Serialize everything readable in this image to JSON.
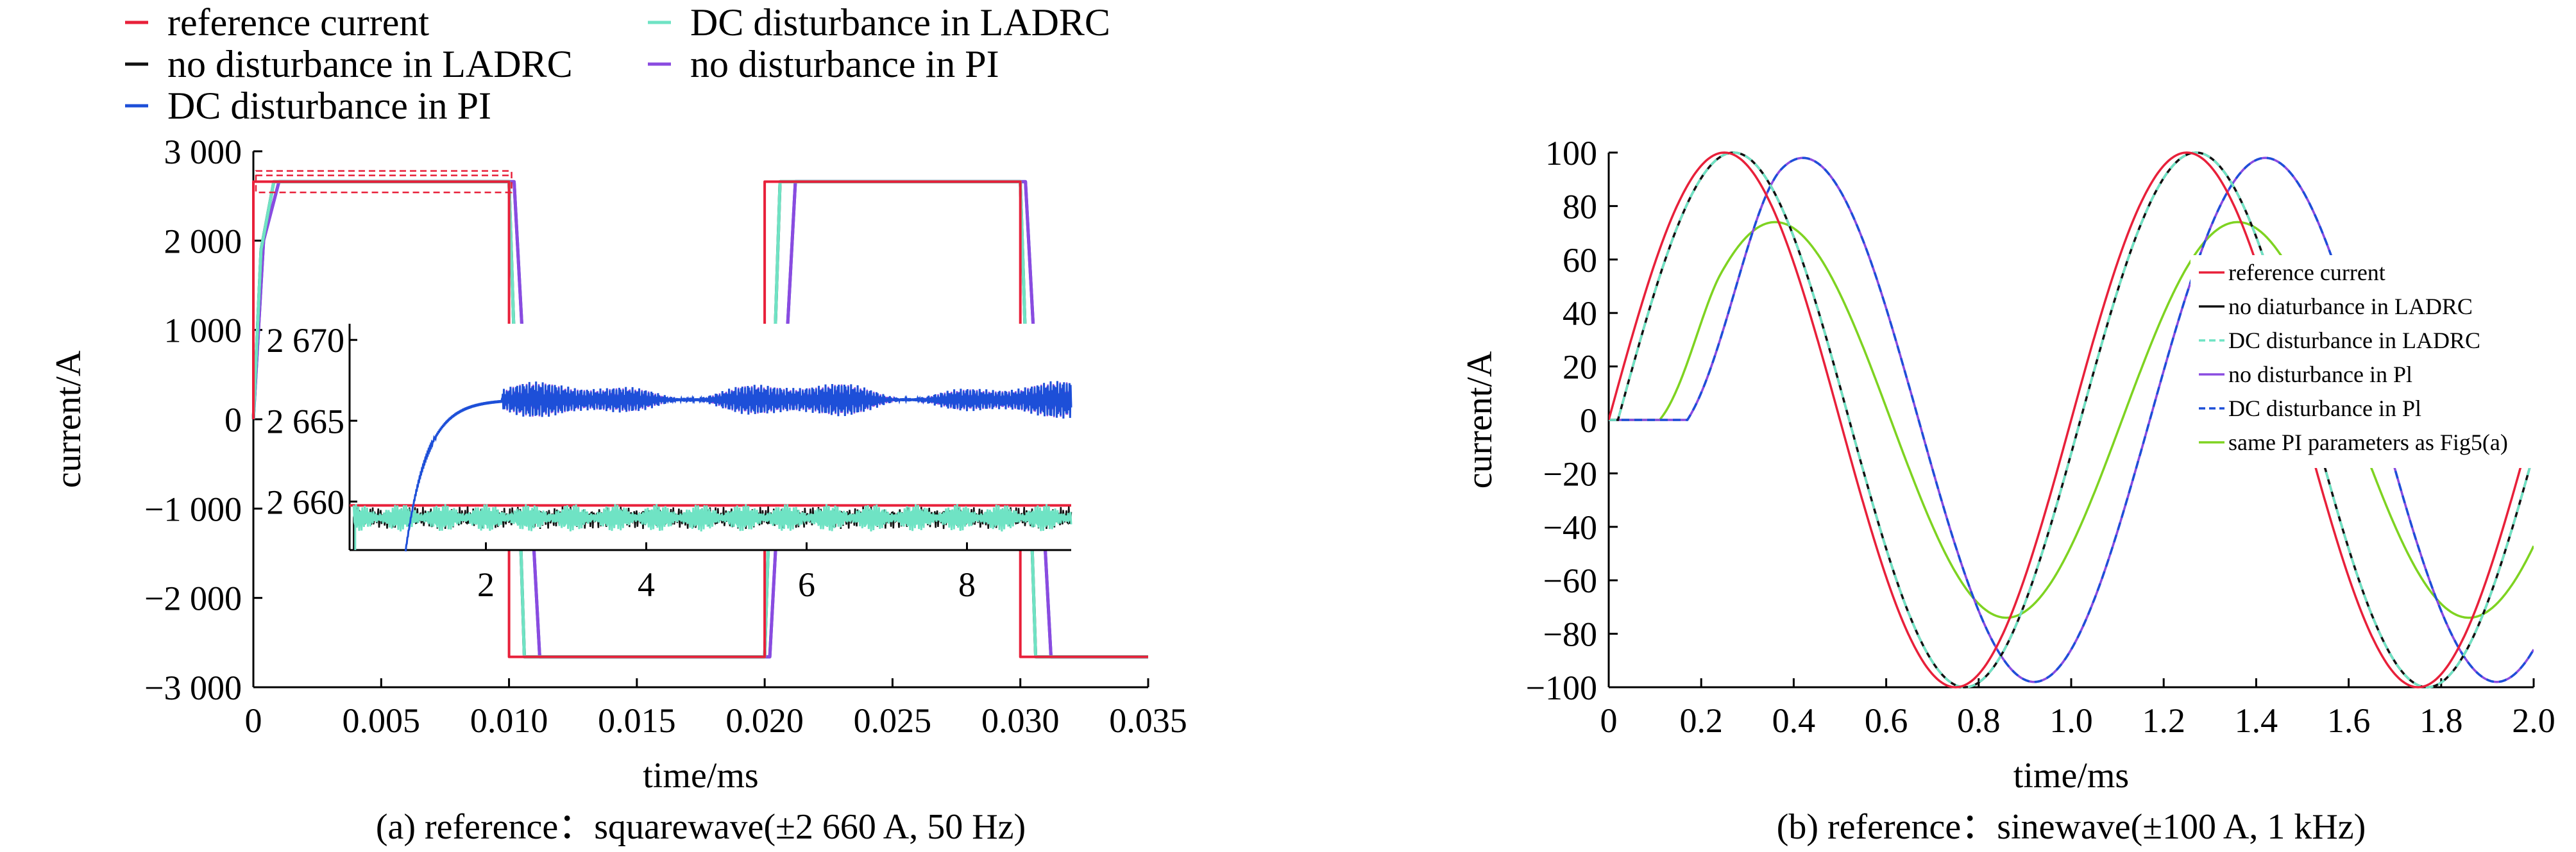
{
  "colors": {
    "reference": "#e8203a",
    "no_dist_ladrc": "#111111",
    "dc_dist_ladrc": "#6fe3c4",
    "no_dist_pi": "#8a4be0",
    "dc_dist_pi": "#1d4fd8",
    "same_pi": "#7ed321"
  },
  "chart_data": [
    {
      "id": "a",
      "type": "line",
      "caption": "(a) reference：squarewave(±2 660 A, 50 Hz)",
      "xlabel": "time/ms",
      "ylabel": "current/A",
      "xlim": [
        0,
        0.035
      ],
      "ylim": [
        -3000,
        3000
      ],
      "xticks": [
        0,
        0.005,
        0.01,
        0.015,
        0.02,
        0.025,
        0.03,
        0.035
      ],
      "xtick_labels": [
        "0",
        "0.005",
        "0.010",
        "0.015",
        "0.020",
        "0.025",
        "0.030",
        "0.035"
      ],
      "yticks": [
        -3000,
        -2000,
        -1000,
        0,
        1000,
        2000,
        3000
      ],
      "ytick_labels": [
        "−3 000",
        "−2 000",
        "−1 000",
        "0",
        "1 000",
        "2 000",
        "3 000"
      ],
      "legend_position": "top",
      "legend": [
        "reference current",
        "DC disturbance in LADRC",
        "no disturbance in LADRC",
        "no disturbance in PI",
        "DC disturbance in PI"
      ],
      "series": [
        {
          "name": "reference current",
          "key": "reference",
          "x": [
            0,
            0,
            0.01,
            0.01,
            0.02,
            0.02,
            0.03,
            0.03,
            0.035
          ],
          "y": [
            0,
            2660,
            2660,
            -2660,
            -2660,
            2660,
            2660,
            -2660,
            -2660
          ]
        },
        {
          "name": "no disturbance in LADRC",
          "key": "no_dist_ladrc",
          "x": [
            0,
            0.0003,
            0.0008,
            0.01,
            0.0106,
            0.02,
            0.0206,
            0.03,
            0.0306,
            0.035
          ],
          "y": [
            0,
            1900,
            2660,
            2660,
            -2660,
            -2660,
            2660,
            2660,
            -2660,
            -2660
          ]
        },
        {
          "name": "DC disturbance in LADRC",
          "key": "dc_dist_ladrc",
          "x": [
            0,
            0.0003,
            0.0008,
            0.01,
            0.0106,
            0.02,
            0.0206,
            0.03,
            0.0306,
            0.035
          ],
          "y": [
            0,
            1900,
            2660,
            2660,
            -2660,
            -2660,
            2660,
            2660,
            -2660,
            -2660
          ]
        },
        {
          "name": "no disturbance in PI",
          "key": "no_dist_pi",
          "x": [
            0,
            0.0004,
            0.001,
            0.0102,
            0.0112,
            0.0202,
            0.0212,
            0.0302,
            0.0312,
            0.035
          ],
          "y": [
            0,
            2000,
            2660,
            2660,
            -2660,
            -2660,
            2660,
            2660,
            -2660,
            -2660
          ]
        },
        {
          "name": "DC disturbance in PI",
          "key": "dc_dist_pi",
          "x": [
            0,
            0.0004,
            0.001,
            0.0102,
            0.0112,
            0.0202,
            0.0212,
            0.0302,
            0.0312,
            0.035
          ],
          "y": [
            0,
            2000,
            2660,
            2660,
            -2660,
            -2660,
            2660,
            2660,
            -2660,
            -2660
          ]
        }
      ],
      "inset": {
        "xlim": [
          0.3,
          9.3
        ],
        "ylim": [
          2657,
          2671
        ],
        "xticks": [
          2,
          4,
          6,
          8
        ],
        "xtick_labels": [
          "2",
          "4",
          "6",
          "8"
        ],
        "yticks": [
          2660,
          2665,
          2670
        ],
        "ytick_labels": [
          "2 660",
          "2 665",
          "2 670"
        ],
        "reference_level": 2660,
        "ladrc_level": 2659,
        "pi_start": 1.0,
        "pi_level": 2666.3
      }
    },
    {
      "id": "b",
      "type": "line",
      "caption": "(b) reference：sinewave(±100 A, 1 kHz)",
      "xlabel": "time/ms",
      "ylabel": "current/A",
      "xlim": [
        0,
        2.0
      ],
      "ylim": [
        -100,
        100
      ],
      "xticks": [
        0,
        0.2,
        0.4,
        0.6,
        0.8,
        1.0,
        1.2,
        1.4,
        1.6,
        1.8,
        2.0
      ],
      "xtick_labels": [
        "0",
        "0.2",
        "0.4",
        "0.6",
        "0.8",
        "1.0",
        "1.2",
        "1.4",
        "1.6",
        "1.8",
        "2.0"
      ],
      "yticks": [
        -100,
        -80,
        -60,
        -40,
        -20,
        0,
        20,
        40,
        60,
        80,
        100
      ],
      "ytick_labels": [
        "−100",
        "−80",
        "−60",
        "−40",
        "−20",
        "0",
        "20",
        "40",
        "60",
        "80",
        "100"
      ],
      "legend_position": "right",
      "legend": [
        "reference current",
        "no diaturbance in LADRC",
        "DC disturbance in LADRC",
        "no disturbance in Pl",
        "DC disturbance in Pl",
        "same PI parameters as Fig5(a)"
      ],
      "series": [
        {
          "name": "reference current",
          "key": "reference",
          "amplitude": 100,
          "delay_ms": 0.0,
          "period_ms": 1.0,
          "dashed": false
        },
        {
          "name": "no diaturbance in LADRC",
          "key": "no_dist_ladrc",
          "amplitude": 100,
          "delay_ms": 0.02,
          "period_ms": 1.0,
          "dashed": false
        },
        {
          "name": "DC disturbance in LADRC",
          "key": "dc_dist_ladrc",
          "amplitude": 100,
          "delay_ms": 0.02,
          "period_ms": 1.0,
          "dashed": true
        },
        {
          "name": "no disturbance in Pl",
          "key": "no_dist_pi",
          "amplitude": 98,
          "delay_ms": 0.17,
          "period_ms": 1.0,
          "dashed": false
        },
        {
          "name": "DC disturbance in Pl",
          "key": "dc_dist_pi",
          "amplitude": 98,
          "delay_ms": 0.17,
          "period_ms": 1.0,
          "dashed": true
        },
        {
          "name": "same PI parameters as Fig5(a)",
          "key": "same_pi",
          "amplitude": 74,
          "delay_ms": 0.11,
          "period_ms": 1.0,
          "dashed": false
        }
      ]
    }
  ]
}
